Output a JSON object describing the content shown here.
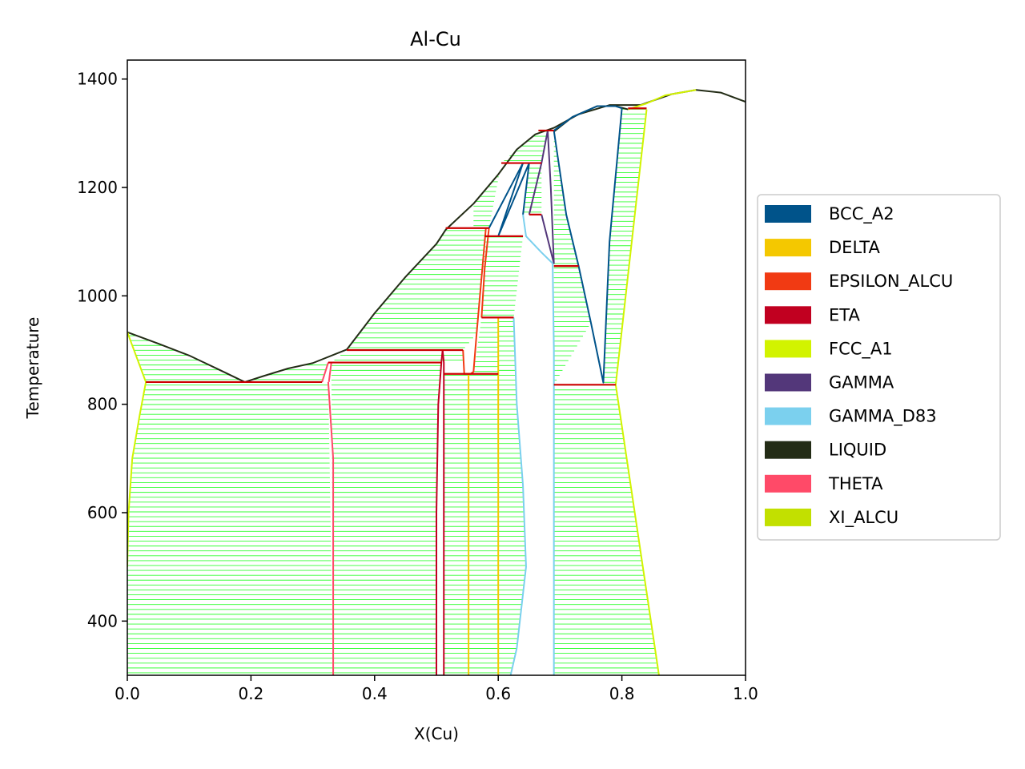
{
  "chart_data": {
    "type": "line",
    "title": "Al-Cu",
    "xlabel": "X(Cu)",
    "ylabel": "Temperature",
    "xlim": [
      0.0,
      1.0
    ],
    "ylim": [
      300,
      1435
    ],
    "xticks": [
      0.0,
      0.2,
      0.4,
      0.6,
      0.8,
      1.0
    ],
    "xtick_labels": [
      "0.0",
      "0.2",
      "0.4",
      "0.6",
      "0.8",
      "1.0"
    ],
    "yticks": [
      400,
      600,
      800,
      1000,
      1200,
      1400
    ],
    "ytick_labels": [
      "400",
      "600",
      "800",
      "1000",
      "1200",
      "1400"
    ],
    "legend_position": "right",
    "legend": [
      {
        "name": "BCC_A2",
        "color": "#00538a"
      },
      {
        "name": "DELTA",
        "color": "#f4c800"
      },
      {
        "name": "EPSILON_ALCU",
        "color": "#f13a13"
      },
      {
        "name": "ETA",
        "color": "#c10020"
      },
      {
        "name": "FCC_A1",
        "color": "#d2f300"
      },
      {
        "name": "GAMMA",
        "color": "#53377a"
      },
      {
        "name": "GAMMA_D83",
        "color": "#7bd0ee"
      },
      {
        "name": "LIQUID",
        "color": "#232c16"
      },
      {
        "name": "THETA",
        "color": "#ff4a68"
      },
      {
        "name": "XI_ALCU",
        "color": "#c2e000"
      }
    ],
    "tieline_color": "#33ff33",
    "invariant_color": "#cc0000",
    "series": [
      {
        "name": "LIQUID",
        "color": "#232c16",
        "points": [
          [
            0.0,
            933
          ],
          [
            0.05,
            912
          ],
          [
            0.1,
            890
          ],
          [
            0.15,
            863
          ],
          [
            0.19,
            841
          ],
          [
            0.22,
            852
          ],
          [
            0.26,
            866
          ],
          [
            0.3,
            876
          ],
          [
            0.355,
            901
          ],
          [
            0.4,
            968
          ],
          [
            0.45,
            1035
          ],
          [
            0.5,
            1096
          ],
          [
            0.515,
            1122
          ],
          [
            0.56,
            1170
          ],
          [
            0.6,
            1224
          ],
          [
            0.63,
            1270
          ],
          [
            0.66,
            1298
          ],
          [
            0.69,
            1310
          ],
          [
            0.73,
            1335
          ],
          [
            0.78,
            1352
          ],
          [
            0.83,
            1352
          ],
          [
            0.88,
            1372
          ],
          [
            0.92,
            1380
          ],
          [
            0.96,
            1375
          ],
          [
            1.0,
            1358
          ]
        ]
      },
      {
        "name": "LIQUID",
        "color": "#232c16",
        "points": [
          [
            0.69,
            1303
          ],
          [
            0.72,
            1330
          ],
          [
            0.76,
            1350
          ],
          [
            0.79,
            1350
          ],
          [
            0.81,
            1344
          ]
        ]
      },
      {
        "name": "FCC_A1",
        "color": "#d2f300",
        "points": [
          [
            0.0,
            933
          ],
          [
            0.03,
            841
          ]
        ]
      },
      {
        "name": "FCC_A1",
        "color": "#d2f300",
        "points": [
          [
            0.03,
            841
          ],
          [
            0.02,
            780
          ],
          [
            0.008,
            700
          ],
          [
            0.002,
            600
          ],
          [
            0.0,
            500
          ]
        ]
      },
      {
        "name": "FCC_A1",
        "color": "#d2f300",
        "points": [
          [
            0.81,
            1344
          ],
          [
            0.84,
            1355
          ],
          [
            0.87,
            1370
          ],
          [
            0.92,
            1380
          ]
        ]
      },
      {
        "name": "FCC_A1",
        "color": "#d2f300",
        "points": [
          [
            0.84,
            1344
          ],
          [
            0.79,
            836
          ],
          [
            0.86,
            300
          ]
        ]
      },
      {
        "name": "THETA",
        "color": "#ff4a68",
        "points": [
          [
            0.315,
            841
          ],
          [
            0.325,
            877
          ]
        ]
      },
      {
        "name": "THETA",
        "color": "#ff4a68",
        "points": [
          [
            0.325,
            841
          ],
          [
            0.333,
            700
          ],
          [
            0.333,
            300
          ]
        ]
      },
      {
        "name": "THETA",
        "color": "#ff4a68",
        "points": [
          [
            0.33,
            877
          ],
          [
            0.326,
            841
          ]
        ]
      },
      {
        "name": "ETA",
        "color": "#c10020",
        "points": [
          [
            0.5,
            300
          ],
          [
            0.5,
            600
          ],
          [
            0.503,
            800
          ],
          [
            0.508,
            877
          ],
          [
            0.51,
            900
          ]
        ]
      },
      {
        "name": "ETA",
        "color": "#c10020",
        "points": [
          [
            0.51,
            900
          ],
          [
            0.512,
            877
          ],
          [
            0.512,
            700
          ],
          [
            0.512,
            300
          ]
        ]
      },
      {
        "name": "EPSILON_ALCU",
        "color": "#f13a13",
        "points": [
          [
            0.543,
            900
          ],
          [
            0.545,
            856
          ],
          [
            0.555,
            856
          ],
          [
            0.56,
            860
          ],
          [
            0.565,
            930
          ],
          [
            0.575,
            1060
          ],
          [
            0.58,
            1125
          ]
        ]
      },
      {
        "name": "EPSILON_ALCU",
        "color": "#f13a13",
        "points": [
          [
            0.573,
            960
          ],
          [
            0.578,
            1050
          ],
          [
            0.585,
            1125
          ]
        ]
      },
      {
        "name": "DELTA",
        "color": "#f4c800",
        "points": [
          [
            0.552,
            856
          ],
          [
            0.552,
            300
          ]
        ]
      },
      {
        "name": "DELTA",
        "color": "#f4c800",
        "points": [
          [
            0.6,
            960
          ],
          [
            0.6,
            300
          ]
        ]
      },
      {
        "name": "BCC_A2",
        "color": "#00538a",
        "points": [
          [
            0.585,
            1125
          ],
          [
            0.64,
            1245
          ],
          [
            0.6,
            1110
          ],
          [
            0.65,
            1245
          ],
          [
            0.64,
            1150
          ]
        ]
      },
      {
        "name": "BCC_A2",
        "color": "#00538a",
        "points": [
          [
            0.69,
            1305
          ],
          [
            0.71,
            1150
          ],
          [
            0.73,
            1055
          ],
          [
            0.75,
            950
          ],
          [
            0.77,
            840
          ],
          [
            0.78,
            1100
          ],
          [
            0.8,
            1346
          ]
        ]
      },
      {
        "name": "BCC_A2",
        "color": "#00538a",
        "points": [
          [
            0.69,
            1305
          ],
          [
            0.72,
            1330
          ],
          [
            0.76,
            1350
          ],
          [
            0.79,
            1350
          ],
          [
            0.8,
            1346
          ]
        ]
      },
      {
        "name": "GAMMA",
        "color": "#53377a",
        "points": [
          [
            0.65,
            1150
          ],
          [
            0.67,
            1245
          ],
          [
            0.68,
            1305
          ]
        ]
      },
      {
        "name": "GAMMA",
        "color": "#53377a",
        "points": [
          [
            0.68,
            1305
          ],
          [
            0.685,
            1200
          ],
          [
            0.69,
            1060
          ],
          [
            0.67,
            1150
          ]
        ]
      },
      {
        "name": "GAMMA_D83",
        "color": "#7bd0ee",
        "points": [
          [
            0.625,
            960
          ],
          [
            0.63,
            800
          ],
          [
            0.64,
            650
          ],
          [
            0.645,
            500
          ],
          [
            0.63,
            350
          ],
          [
            0.62,
            300
          ]
        ]
      },
      {
        "name": "GAMMA_D83",
        "color": "#7bd0ee",
        "points": [
          [
            0.64,
            1150
          ],
          [
            0.645,
            1110
          ],
          [
            0.67,
            1080
          ],
          [
            0.688,
            1060
          ]
        ]
      },
      {
        "name": "GAMMA_D83",
        "color": "#7bd0ee",
        "points": [
          [
            0.688,
            1060
          ],
          [
            0.69,
            900
          ],
          [
            0.69,
            700
          ],
          [
            0.69,
            300
          ]
        ]
      }
    ],
    "invariants": [
      {
        "y": 841,
        "x": [
          0.03,
          0.315
        ]
      },
      {
        "y": 877,
        "x": [
          0.325,
          0.508
        ]
      },
      {
        "y": 900,
        "x": [
          0.355,
          0.543
        ]
      },
      {
        "y": 856,
        "x": [
          0.512,
          0.6
        ]
      },
      {
        "y": 960,
        "x": [
          0.573,
          0.625
        ]
      },
      {
        "y": 1110,
        "x": [
          0.578,
          0.64
        ]
      },
      {
        "y": 1125,
        "x": [
          0.515,
          0.585
        ]
      },
      {
        "y": 1150,
        "x": [
          0.65,
          0.67
        ]
      },
      {
        "y": 1245,
        "x": [
          0.605,
          0.67
        ]
      },
      {
        "y": 1305,
        "x": [
          0.665,
          0.69
        ]
      },
      {
        "y": 1055,
        "x": [
          0.69,
          0.73
        ]
      },
      {
        "y": 836,
        "x": [
          0.69,
          0.79
        ]
      },
      {
        "y": 1346,
        "x": [
          0.81,
          0.84
        ]
      }
    ],
    "tieline_regions": [
      {
        "ymin": 300,
        "ymax": 841,
        "x_left": [
          [
            300,
            0.0
          ],
          [
            500,
            0.0
          ],
          [
            600,
            0.002
          ],
          [
            700,
            0.008
          ],
          [
            780,
            0.02
          ],
          [
            841,
            0.03
          ]
        ],
        "x_right": [
          [
            300,
            0.333
          ],
          [
            841,
            0.325
          ]
        ]
      },
      {
        "ymin": 841,
        "ymax": 933,
        "x_left": [
          [
            841,
            0.03
          ],
          [
            933,
            0.0
          ]
        ],
        "x_right": [
          [
            841,
            0.19
          ],
          [
            863,
            0.15
          ],
          [
            890,
            0.1
          ],
          [
            912,
            0.05
          ],
          [
            933,
            0.0
          ]
        ]
      },
      {
        "ymin": 841,
        "ymax": 877,
        "x_left": [
          [
            841,
            0.19
          ],
          [
            852,
            0.22
          ],
          [
            866,
            0.26
          ],
          [
            877,
            0.3
          ]
        ],
        "x_right": [
          [
            841,
            0.315
          ],
          [
            877,
            0.325
          ]
        ]
      },
      {
        "ymin": 300,
        "ymax": 877,
        "x_left": [
          [
            300,
            0.333
          ],
          [
            877,
            0.33
          ]
        ],
        "x_right": [
          [
            300,
            0.5
          ],
          [
            600,
            0.5
          ],
          [
            800,
            0.503
          ],
          [
            877,
            0.508
          ]
        ]
      },
      {
        "ymin": 877,
        "ymax": 900,
        "x_left": [
          [
            877,
            0.33
          ],
          [
            900,
            0.355
          ]
        ],
        "x_right": [
          [
            877,
            0.543
          ],
          [
            900,
            0.543
          ]
        ]
      },
      {
        "ymin": 900,
        "ymax": 1125,
        "x_left": [
          [
            900,
            0.355
          ],
          [
            968,
            0.4
          ],
          [
            1035,
            0.45
          ],
          [
            1096,
            0.5
          ],
          [
            1125,
            0.515
          ]
        ],
        "x_right": [
          [
            900,
            0.543
          ],
          [
            930,
            0.565
          ],
          [
            1060,
            0.575
          ],
          [
            1125,
            0.58
          ]
        ]
      },
      {
        "ymin": 300,
        "ymax": 856,
        "x_left": [
          [
            300,
            0.512
          ],
          [
            856,
            0.512
          ]
        ],
        "x_right": [
          [
            300,
            0.552
          ],
          [
            856,
            0.552
          ]
        ]
      },
      {
        "ymin": 300,
        "ymax": 856,
        "x_left": [
          [
            300,
            0.552
          ],
          [
            856,
            0.552
          ]
        ],
        "x_right": [
          [
            300,
            0.6
          ],
          [
            856,
            0.6
          ]
        ]
      },
      {
        "ymin": 856,
        "ymax": 960,
        "x_left": [
          [
            856,
            0.56
          ],
          [
            960,
            0.573
          ]
        ],
        "x_right": [
          [
            856,
            0.6
          ],
          [
            960,
            0.6
          ]
        ]
      },
      {
        "ymin": 960,
        "ymax": 1110,
        "x_left": [
          [
            960,
            0.573
          ],
          [
            1110,
            0.578
          ]
        ],
        "x_right": [
          [
            960,
            0.625
          ],
          [
            1060,
            0.635
          ],
          [
            1110,
            0.64
          ]
        ]
      },
      {
        "ymin": 300,
        "ymax": 960,
        "x_left": [
          [
            300,
            0.6
          ],
          [
            960,
            0.6
          ]
        ],
        "x_right": [
          [
            300,
            0.62
          ],
          [
            350,
            0.63
          ],
          [
            500,
            0.645
          ],
          [
            650,
            0.64
          ],
          [
            800,
            0.63
          ],
          [
            960,
            0.625
          ]
        ]
      },
      {
        "ymin": 1125,
        "ymax": 1245,
        "x_left": [
          [
            1125,
            0.56
          ],
          [
            1170,
            0.56
          ],
          [
            1224,
            0.6
          ],
          [
            1245,
            0.605
          ]
        ],
        "x_right": [
          [
            1125,
            0.585
          ],
          [
            1245,
            0.605
          ]
        ]
      },
      {
        "ymin": 1150,
        "ymax": 1245,
        "x_left": [
          [
            1150,
            0.64
          ],
          [
            1245,
            0.65
          ]
        ],
        "x_right": [
          [
            1150,
            0.67
          ],
          [
            1245,
            0.67
          ]
        ]
      },
      {
        "ymin": 1245,
        "ymax": 1305,
        "x_left": [
          [
            1245,
            0.605
          ],
          [
            1270,
            0.63
          ],
          [
            1298,
            0.66
          ],
          [
            1305,
            0.67
          ]
        ],
        "x_right": [
          [
            1245,
            0.67
          ],
          [
            1305,
            0.68
          ]
        ]
      },
      {
        "ymin": 1055,
        "ymax": 1305,
        "x_left": [
          [
            1055,
            0.69
          ],
          [
            1305,
            0.69
          ]
        ],
        "x_right": [
          [
            1055,
            0.73
          ],
          [
            1150,
            0.71
          ],
          [
            1305,
            0.69
          ]
        ]
      },
      {
        "ymin": 300,
        "ymax": 1055,
        "x_left": [
          [
            300,
            0.69
          ],
          [
            1055,
            0.69
          ]
        ],
        "x_right": [
          [
            300,
            0.69
          ],
          [
            836,
            0.69
          ],
          [
            950,
            0.75
          ],
          [
            1055,
            0.73
          ]
        ]
      },
      {
        "ymin": 300,
        "ymax": 836,
        "x_left": [
          [
            300,
            0.69
          ],
          [
            836,
            0.69
          ]
        ],
        "x_right": [
          [
            300,
            0.86
          ],
          [
            836,
            0.79
          ]
        ]
      },
      {
        "ymin": 836,
        "ymax": 1346,
        "x_left": [
          [
            836,
            0.77
          ],
          [
            1100,
            0.78
          ],
          [
            1346,
            0.8
          ]
        ],
        "x_right": [
          [
            836,
            0.79
          ],
          [
            1346,
            0.84
          ]
        ]
      }
    ]
  }
}
